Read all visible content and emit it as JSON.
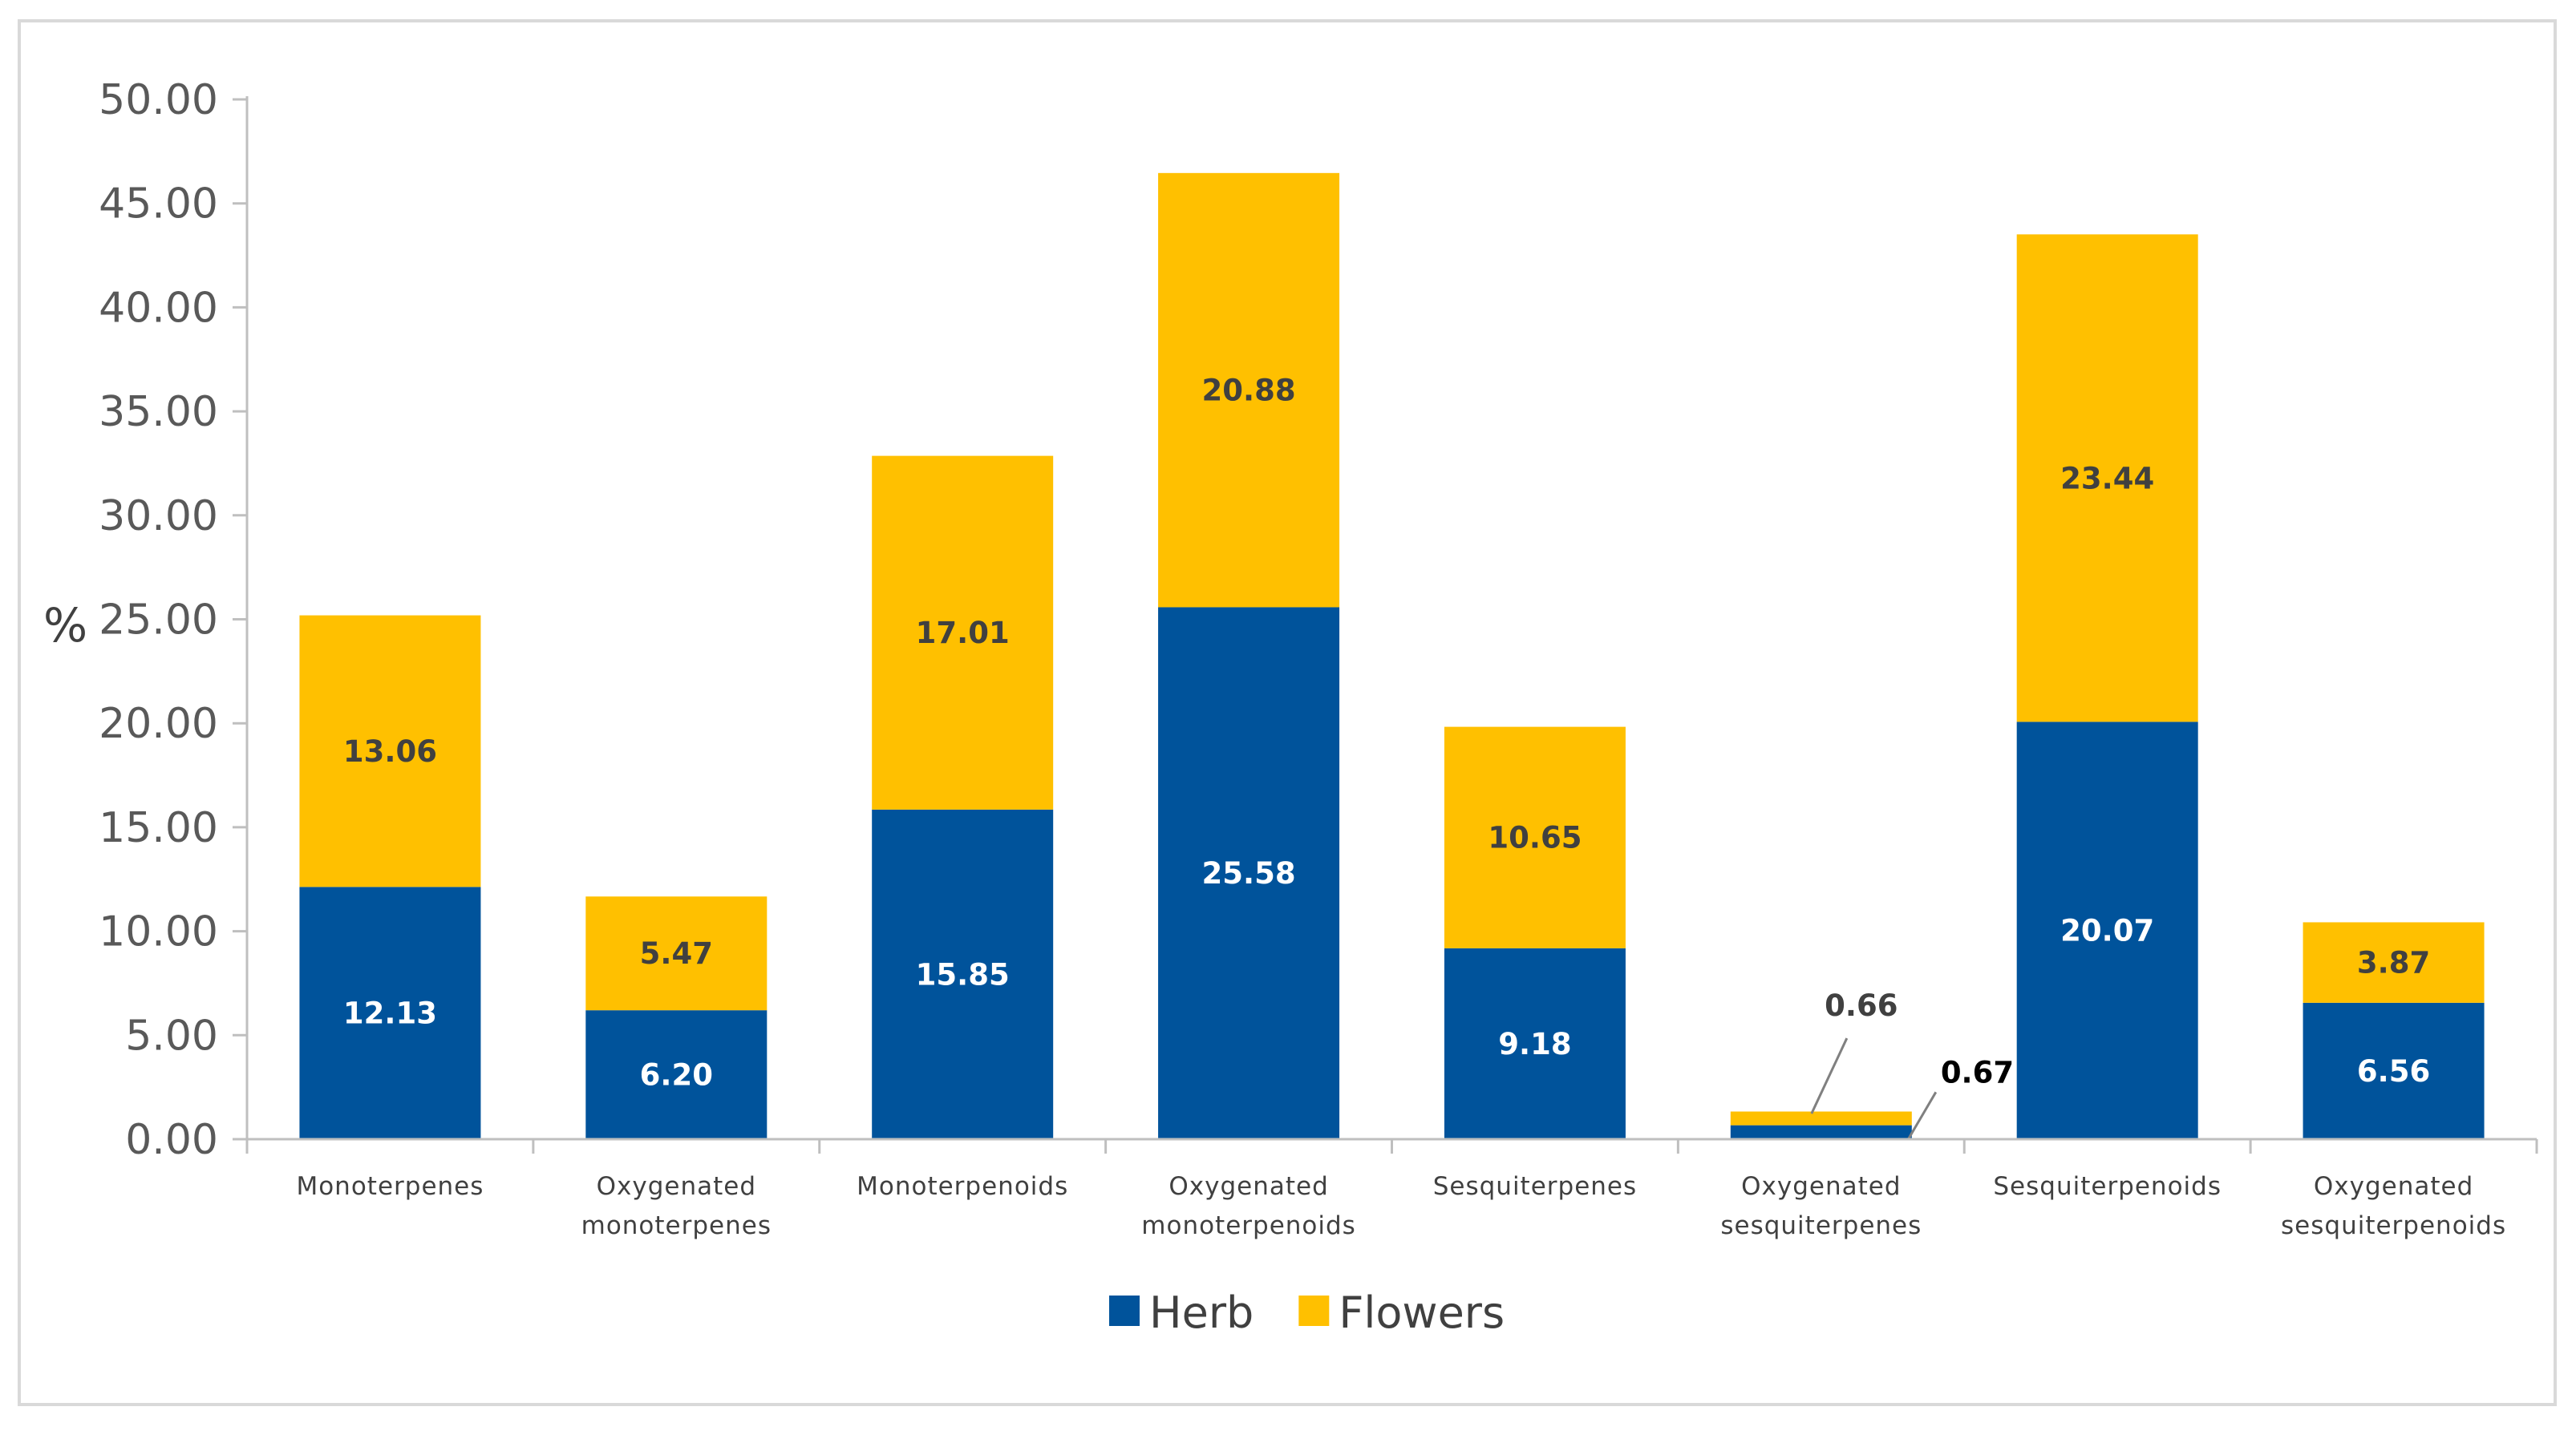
{
  "chart_data": {
    "type": "bar",
    "stacked": true,
    "title": "",
    "xlabel": "",
    "ylabel": "%",
    "ylim": [
      0,
      50
    ],
    "ytick_step": 5,
    "ytick_decimals": 2,
    "categories": [
      [
        "Monoterpenes"
      ],
      [
        "Oxygenated",
        "monoterpenes"
      ],
      [
        "Monoterpenoids"
      ],
      [
        "Oxygenated",
        "monoterpenoids"
      ],
      [
        "Sesquiterpenes"
      ],
      [
        "Oxygenated",
        "sesquiterpenes"
      ],
      [
        "Sesquiterpenoids"
      ],
      [
        "Oxygenated",
        "sesquiterpenoids"
      ]
    ],
    "series": [
      {
        "name": "Herb",
        "color": "#00539b",
        "label_color": "#ffffff",
        "values": [
          12.13,
          6.2,
          15.85,
          25.58,
          9.18,
          0.67,
          20.07,
          6.56
        ],
        "labels": [
          "12.13",
          "6.20",
          "15.85",
          "25.58",
          "9.18",
          "0.67",
          "20.07",
          "6.56"
        ]
      },
      {
        "name": "Flowers",
        "color": "#ffc000",
        "label_color": "#404040",
        "values": [
          13.06,
          5.47,
          17.01,
          20.88,
          10.65,
          0.66,
          23.44,
          3.87
        ],
        "labels": [
          "13.06",
          "5.47",
          "17.01",
          "20.88",
          "10.65",
          "0.66",
          "23.44",
          "3.87"
        ]
      }
    ],
    "legend_position": "bottom-center",
    "colors": {
      "axis": "#bfbfbf",
      "border": "#d9d9d9",
      "tick_text": "#595959",
      "callout_line": "#808080"
    }
  }
}
